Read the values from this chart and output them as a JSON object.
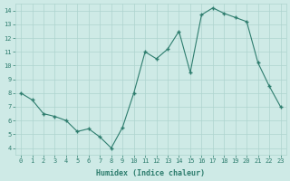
{
  "x": [
    0,
    1,
    2,
    3,
    4,
    5,
    6,
    7,
    8,
    9,
    10,
    11,
    12,
    13,
    14,
    15,
    16,
    17,
    18,
    19,
    20,
    21,
    22,
    23
  ],
  "y": [
    8.0,
    7.5,
    6.5,
    6.3,
    6.0,
    5.2,
    5.4,
    4.8,
    4.0,
    5.5,
    8.0,
    11.0,
    10.5,
    11.2,
    12.5,
    9.5,
    13.7,
    14.2,
    13.8,
    13.5,
    13.2,
    10.2,
    8.5,
    7.0
  ],
  "line_color": "#2e7d6e",
  "marker": "+",
  "marker_size": 3,
  "marker_linewidth": 1.0,
  "xlabel": "Humidex (Indice chaleur)",
  "xlim": [
    -0.5,
    23.5
  ],
  "ylim": [
    3.5,
    14.5
  ],
  "yticks": [
    4,
    5,
    6,
    7,
    8,
    9,
    10,
    11,
    12,
    13,
    14
  ],
  "xticks": [
    0,
    1,
    2,
    3,
    4,
    5,
    6,
    7,
    8,
    9,
    10,
    11,
    12,
    13,
    14,
    15,
    16,
    17,
    18,
    19,
    20,
    21,
    22,
    23
  ],
  "background_color": "#ceeae6",
  "grid_color": "#aed4ce",
  "line_width": 0.8,
  "tick_fontsize": 5,
  "xlabel_fontsize": 6,
  "tick_color": "#2e7d6e",
  "label_color": "#2e7d6e"
}
